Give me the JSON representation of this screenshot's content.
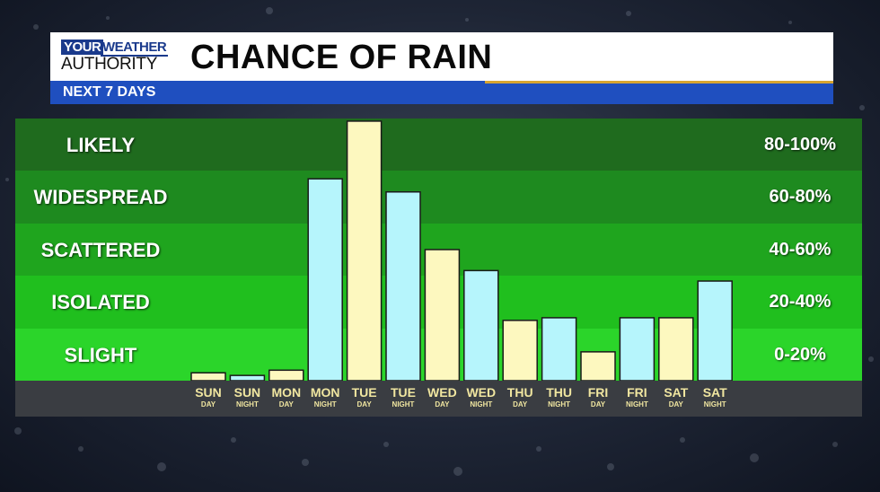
{
  "header": {
    "logo_line1": "YOUR",
    "logo_line1b": "WEATHER",
    "logo_line2": "AUTHORITY",
    "title": "CHANCE OF RAIN",
    "subtitle": "NEXT 7 DAYS"
  },
  "colors": {
    "day_bar": "#fdf8bf",
    "night_bar": "#b6f5fc",
    "band_likely": "#1f6b1e",
    "band_widespread": "#1e8a1f",
    "band_scattered": "#1fa51e",
    "band_isolated": "#20bf1e",
    "band_slight": "#2bd52a"
  },
  "chart_data": {
    "type": "bar",
    "title": "CHANCE OF RAIN",
    "subtitle": "NEXT 7 DAYS",
    "ylim": [
      0,
      100
    ],
    "bands": [
      {
        "label": "LIKELY",
        "range": "80-100%"
      },
      {
        "label": "WIDESPREAD",
        "range": "60-80%"
      },
      {
        "label": "SCATTERED",
        "range": "40-60%"
      },
      {
        "label": "ISOLATED",
        "range": "20-40%"
      },
      {
        "label": "SLIGHT",
        "range": "0-20%"
      }
    ],
    "categories": [
      {
        "day": "SUN",
        "part": "DAY"
      },
      {
        "day": "SUN",
        "part": "NIGHT"
      },
      {
        "day": "MON",
        "part": "DAY"
      },
      {
        "day": "MON",
        "part": "NIGHT"
      },
      {
        "day": "TUE",
        "part": "DAY"
      },
      {
        "day": "TUE",
        "part": "NIGHT"
      },
      {
        "day": "WED",
        "part": "DAY"
      },
      {
        "day": "WED",
        "part": "NIGHT"
      },
      {
        "day": "THU",
        "part": "DAY"
      },
      {
        "day": "THU",
        "part": "NIGHT"
      },
      {
        "day": "FRI",
        "part": "DAY"
      },
      {
        "day": "FRI",
        "part": "NIGHT"
      },
      {
        "day": "SAT",
        "part": "DAY"
      },
      {
        "day": "SAT",
        "part": "NIGHT"
      }
    ],
    "values": [
      3,
      2,
      4,
      77,
      99,
      72,
      50,
      42,
      23,
      24,
      11,
      24,
      24,
      38
    ]
  }
}
